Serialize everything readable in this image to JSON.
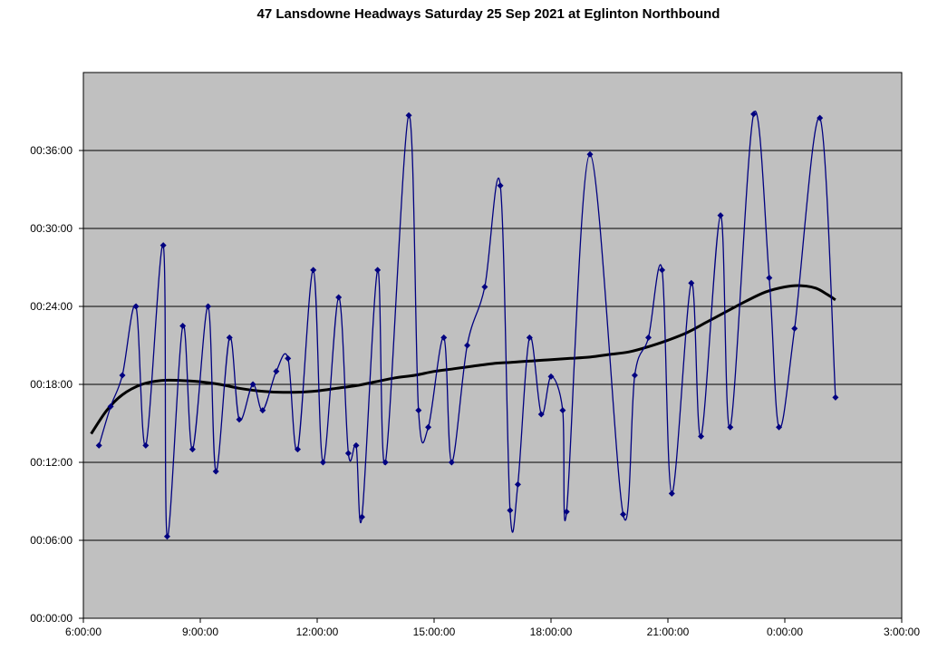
{
  "chart_data": {
    "type": "line",
    "title": "47 Lansdowne Headways Saturday 25 Sep 2021 at Eglinton Northbound",
    "xlabel": "",
    "ylabel": "",
    "x_unit": "hours",
    "y_unit": "minutes",
    "xlim": [
      6,
      27
    ],
    "ylim": [
      0,
      42
    ],
    "x_ticks": [
      {
        "value": 6,
        "label": "6:00:00"
      },
      {
        "value": 9,
        "label": "9:00:00"
      },
      {
        "value": 12,
        "label": "12:00:00"
      },
      {
        "value": 15,
        "label": "15:00:00"
      },
      {
        "value": 18,
        "label": "18:00:00"
      },
      {
        "value": 21,
        "label": "21:00:00"
      },
      {
        "value": 24,
        "label": "0:00:00"
      },
      {
        "value": 27,
        "label": "3:00:00"
      }
    ],
    "y_ticks": [
      {
        "value": 0,
        "label": "00:00:00"
      },
      {
        "value": 6,
        "label": "00:06:00"
      },
      {
        "value": 12,
        "label": "00:12:00"
      },
      {
        "value": 18,
        "label": "00:18:00"
      },
      {
        "value": 24,
        "label": "00:24:00"
      },
      {
        "value": 30,
        "label": "00:30:00"
      },
      {
        "value": 36,
        "label": "00:36:00"
      }
    ],
    "grid": true,
    "plot_background": "#c0c0c0",
    "series": [
      {
        "role": "headways",
        "color": "#000080",
        "marker": "diamond",
        "points": [
          [
            6.4,
            13.3
          ],
          [
            6.7,
            16.3
          ],
          [
            7.0,
            18.7
          ],
          [
            7.35,
            24.0
          ],
          [
            7.6,
            13.3
          ],
          [
            8.05,
            28.7
          ],
          [
            8.15,
            6.3
          ],
          [
            8.55,
            22.5
          ],
          [
            8.8,
            13.0
          ],
          [
            9.2,
            24.0
          ],
          [
            9.4,
            11.3
          ],
          [
            9.75,
            21.6
          ],
          [
            10.0,
            15.3
          ],
          [
            10.35,
            18.0
          ],
          [
            10.6,
            16.0
          ],
          [
            10.95,
            19.0
          ],
          [
            11.25,
            20.0
          ],
          [
            11.5,
            13.0
          ],
          [
            11.9,
            26.8
          ],
          [
            12.15,
            12.0
          ],
          [
            12.55,
            24.7
          ],
          [
            12.8,
            12.7
          ],
          [
            13.0,
            13.3
          ],
          [
            13.15,
            7.8
          ],
          [
            13.55,
            26.8
          ],
          [
            13.75,
            12.0
          ],
          [
            14.35,
            38.7
          ],
          [
            14.6,
            16.0
          ],
          [
            14.85,
            14.7
          ],
          [
            15.25,
            21.6
          ],
          [
            15.45,
            12.0
          ],
          [
            15.85,
            21.0
          ],
          [
            16.3,
            25.5
          ],
          [
            16.7,
            33.3
          ],
          [
            16.95,
            8.3
          ],
          [
            17.15,
            10.3
          ],
          [
            17.45,
            21.6
          ],
          [
            17.75,
            15.7
          ],
          [
            18.0,
            18.6
          ],
          [
            18.3,
            16.0
          ],
          [
            18.4,
            8.2
          ],
          [
            19.0,
            35.7
          ],
          [
            19.85,
            8.0
          ],
          [
            20.15,
            18.7
          ],
          [
            20.5,
            21.6
          ],
          [
            20.85,
            26.8
          ],
          [
            21.1,
            9.6
          ],
          [
            21.6,
            25.8
          ],
          [
            21.85,
            14.0
          ],
          [
            22.35,
            31.0
          ],
          [
            22.6,
            14.7
          ],
          [
            23.2,
            38.8
          ],
          [
            23.6,
            26.2
          ],
          [
            23.85,
            14.7
          ],
          [
            24.25,
            22.3
          ],
          [
            24.9,
            38.5
          ],
          [
            25.3,
            17.0
          ]
        ]
      },
      {
        "role": "trend",
        "color": "#000000",
        "points": [
          [
            6.2,
            14.2
          ],
          [
            6.6,
            16.0
          ],
          [
            7.0,
            17.2
          ],
          [
            7.5,
            18.0
          ],
          [
            8.0,
            18.3
          ],
          [
            8.5,
            18.3
          ],
          [
            9.0,
            18.2
          ],
          [
            9.5,
            18.0
          ],
          [
            10.0,
            17.7
          ],
          [
            10.5,
            17.5
          ],
          [
            11.0,
            17.4
          ],
          [
            11.5,
            17.4
          ],
          [
            12.0,
            17.5
          ],
          [
            12.5,
            17.7
          ],
          [
            13.0,
            17.9
          ],
          [
            13.5,
            18.2
          ],
          [
            14.0,
            18.5
          ],
          [
            14.5,
            18.7
          ],
          [
            15.0,
            19.0
          ],
          [
            15.5,
            19.2
          ],
          [
            16.0,
            19.4
          ],
          [
            16.5,
            19.6
          ],
          [
            17.0,
            19.7
          ],
          [
            17.5,
            19.8
          ],
          [
            18.0,
            19.9
          ],
          [
            18.5,
            20.0
          ],
          [
            19.0,
            20.1
          ],
          [
            19.5,
            20.3
          ],
          [
            20.0,
            20.5
          ],
          [
            20.5,
            20.9
          ],
          [
            21.0,
            21.4
          ],
          [
            21.5,
            22.0
          ],
          [
            22.0,
            22.8
          ],
          [
            22.5,
            23.6
          ],
          [
            23.0,
            24.4
          ],
          [
            23.5,
            25.1
          ],
          [
            24.0,
            25.5
          ],
          [
            24.4,
            25.6
          ],
          [
            24.8,
            25.4
          ],
          [
            25.1,
            24.9
          ],
          [
            25.3,
            24.5
          ]
        ]
      }
    ]
  }
}
